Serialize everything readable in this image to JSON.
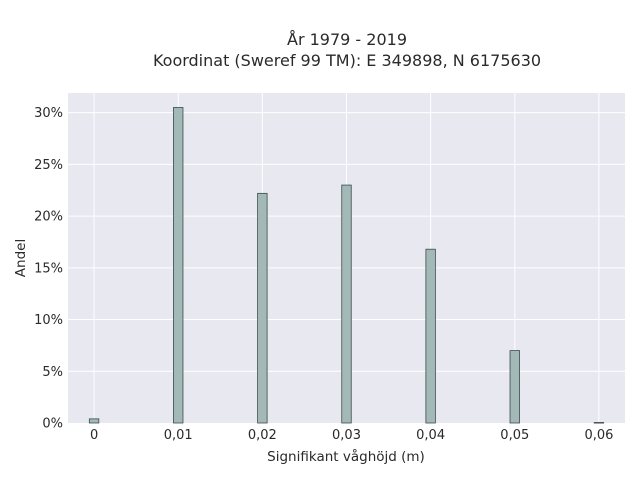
{
  "chart_data": {
    "type": "bar",
    "title_line1": "År 1979 - 2019",
    "title_line2": "Koordinat (Sweref 99 TM): E 349898, N 6175630",
    "xlabel": "Signifikant våghöjd (m)",
    "ylabel": "Andel",
    "x": [
      0,
      0.01,
      0.02,
      0.03,
      0.04,
      0.05,
      0.06
    ],
    "x_tick_labels": [
      "0",
      "0,01",
      "0,02",
      "0,03",
      "0,04",
      "0,05",
      "0,06"
    ],
    "values": [
      0.4,
      30.5,
      22.2,
      23.0,
      16.8,
      7.0,
      0.05
    ],
    "y_ticks": [
      0,
      5,
      10,
      15,
      20,
      25,
      30
    ],
    "y_tick_labels": [
      "0%",
      "5%",
      "10%",
      "15%",
      "20%",
      "25%",
      "30%"
    ],
    "ylim": [
      0,
      31.9
    ],
    "xlim": [
      -0.0031,
      0.0631
    ],
    "grid": true,
    "legend": "none",
    "colors": {
      "bar": "#a3b9b8",
      "bar_edge": "#3c4a4a",
      "plot_bg": "#e8e8f0",
      "grid": "#ffffff"
    }
  }
}
